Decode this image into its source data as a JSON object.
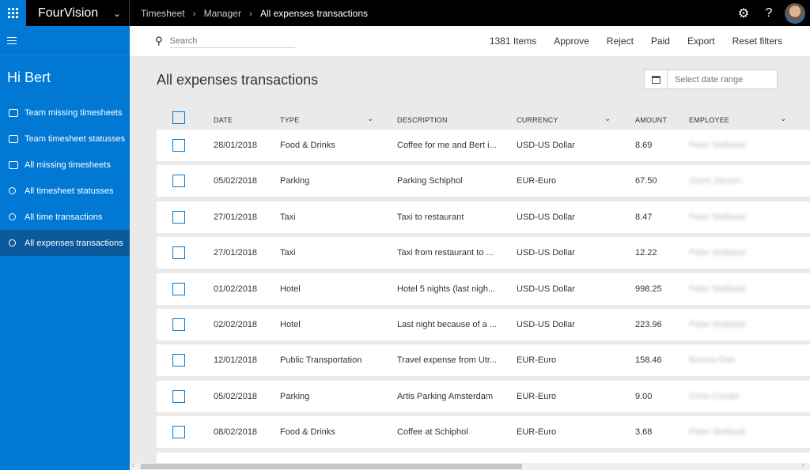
{
  "app": {
    "name": "FourVision"
  },
  "breadcrumb": [
    "Timesheet",
    "Manager",
    "All expenses transactions"
  ],
  "sidebar": {
    "greeting": "Hi Bert",
    "items": [
      {
        "label": "Team missing timesheets",
        "icon": "timesheet-icon"
      },
      {
        "label": "Team timesheet statusses",
        "icon": "team-icon"
      },
      {
        "label": "All missing timesheets",
        "icon": "timesheet-icon"
      },
      {
        "label": "All timesheet statusses",
        "icon": "key-icon"
      },
      {
        "label": "All time transactions",
        "icon": "key-icon"
      },
      {
        "label": "All expenses transactions",
        "icon": "key-icon",
        "active": true
      }
    ]
  },
  "toolbar": {
    "search_placeholder": "Search",
    "count": "1381 Items",
    "approve": "Approve",
    "reject": "Reject",
    "paid": "Paid",
    "export": "Export",
    "reset": "Reset filters"
  },
  "page": {
    "title": "All expenses transactions",
    "date_placeholder": "Select date range"
  },
  "table": {
    "headers": {
      "date": "DATE",
      "type": "TYPE",
      "description": "DESCRIPTION",
      "currency": "CURRENCY",
      "amount": "AMOUNT",
      "employee": "EMPLOYEE"
    },
    "rows": [
      {
        "date": "28/01/2018",
        "type": "Food & Drinks",
        "description": "Coffee for me and Bert i...",
        "currency": "USD-US Dollar",
        "amount": "8.69",
        "employee": "Peter Wolbeek"
      },
      {
        "date": "05/02/2018",
        "type": "Parking",
        "description": "Parking Schiphol",
        "currency": "EUR-Euro",
        "amount": "67.50",
        "employee": "Geert Jansen"
      },
      {
        "date": "27/01/2018",
        "type": "Taxi",
        "description": "Taxi to restaurant",
        "currency": "USD-US Dollar",
        "amount": "8.47",
        "employee": "Peter Wolbeek"
      },
      {
        "date": "27/01/2018",
        "type": "Taxi",
        "description": "Taxi from restaurant to ...",
        "currency": "USD-US Dollar",
        "amount": "12.22",
        "employee": "Peter Wolbeek"
      },
      {
        "date": "01/02/2018",
        "type": "Hotel",
        "description": "Hotel 5 nights (last nigh...",
        "currency": "USD-US Dollar",
        "amount": "998.25",
        "employee": "Peter Wolbeek"
      },
      {
        "date": "02/02/2018",
        "type": "Hotel",
        "description": "Last night because of a ...",
        "currency": "USD-US Dollar",
        "amount": "223.96",
        "employee": "Peter Wolbeek"
      },
      {
        "date": "12/01/2018",
        "type": "Public Transportation",
        "description": "Travel expense from Utr...",
        "currency": "EUR-Euro",
        "amount": "158.46",
        "employee": "Bosma Diek"
      },
      {
        "date": "05/02/2018",
        "type": "Parking",
        "description": "Artis Parking Amsterdam",
        "currency": "EUR-Euro",
        "amount": "9.00",
        "employee": "Chris Cosder"
      },
      {
        "date": "08/02/2018",
        "type": "Food & Drinks",
        "description": "Coffee at Schiphol",
        "currency": "EUR-Euro",
        "amount": "3.68",
        "employee": "Peter Wolbeek"
      }
    ]
  }
}
